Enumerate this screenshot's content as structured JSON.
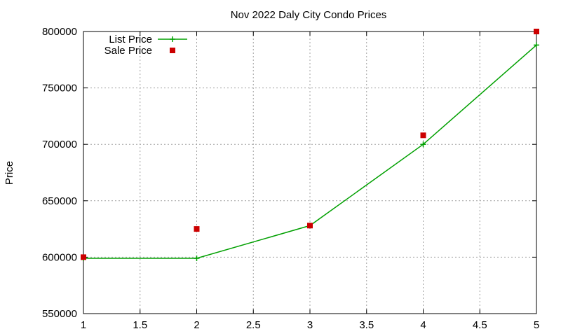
{
  "chart_data": {
    "type": "line",
    "title": "Nov 2022 Daly City Condo Prices",
    "xlabel": "",
    "ylabel": "Price",
    "xlim": [
      1,
      5
    ],
    "ylim": [
      550000,
      800000
    ],
    "x_ticks": [
      1,
      1.5,
      2,
      2.5,
      3,
      3.5,
      4,
      4.5,
      5
    ],
    "y_ticks": [
      550000,
      600000,
      650000,
      700000,
      750000,
      800000
    ],
    "grid": true,
    "legend_position": "top-left",
    "series": [
      {
        "name": "List Price",
        "style": "linespoints",
        "marker": "plus",
        "color": "#00a000",
        "x": [
          1,
          2,
          3,
          4,
          5
        ],
        "y": [
          599000,
          599000,
          628000,
          700000,
          788000
        ]
      },
      {
        "name": "Sale Price",
        "style": "points",
        "marker": "square",
        "color": "#cc0000",
        "x": [
          1,
          2,
          3,
          4,
          5
        ],
        "y": [
          600000,
          625000,
          628000,
          708000,
          800000
        ]
      }
    ]
  }
}
